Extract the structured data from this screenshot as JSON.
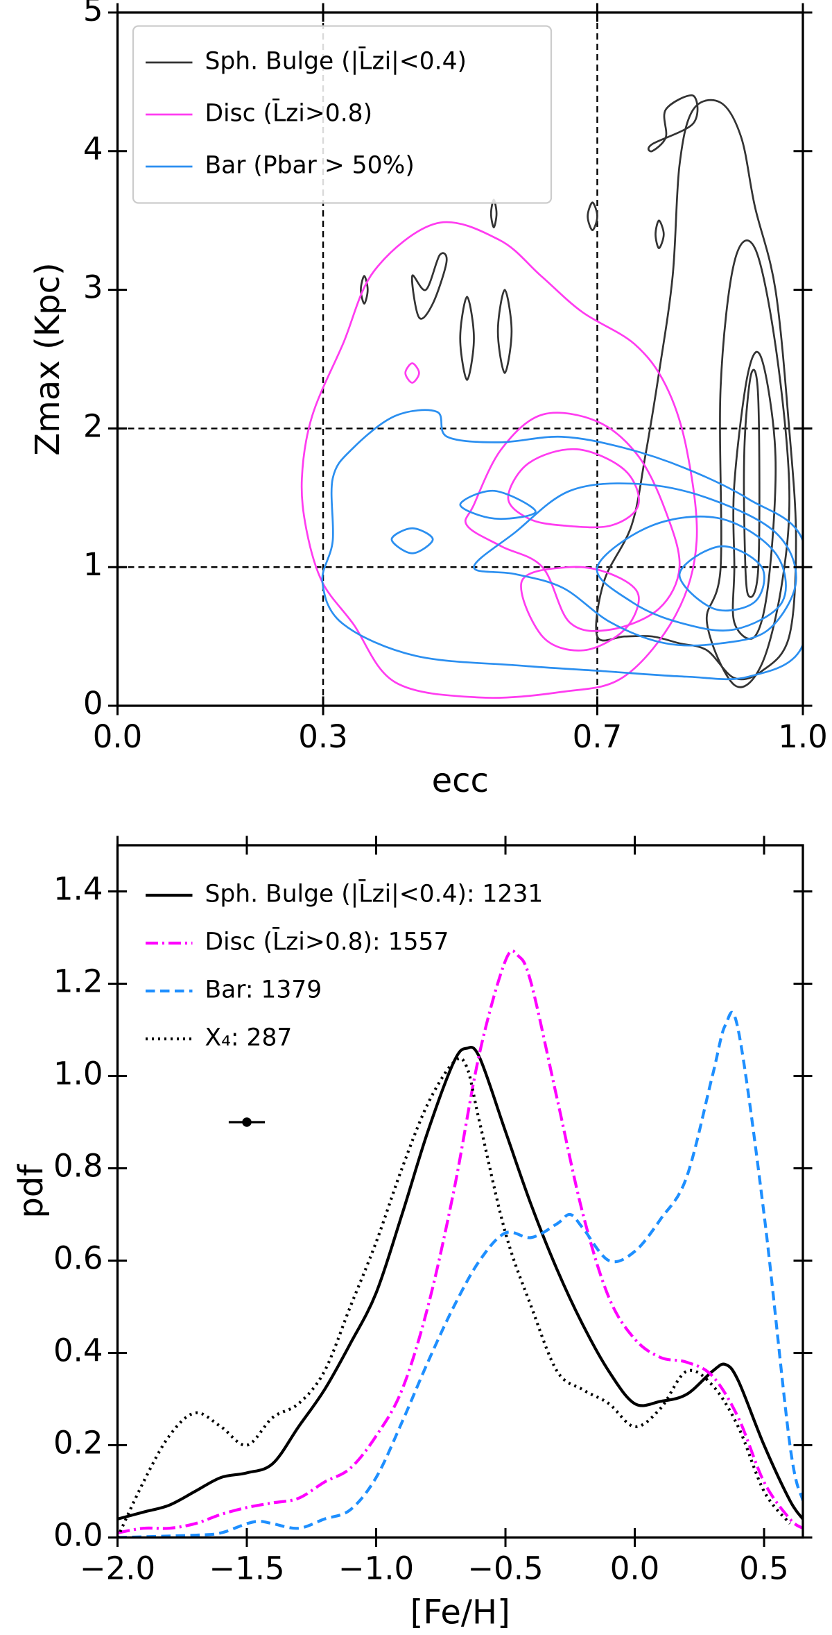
{
  "chart_data": [
    {
      "type": "contour",
      "x_label": "ecc",
      "y_label": "Zmax (Kpc)",
      "xlim": [
        0,
        1
      ],
      "ylim": [
        0,
        5
      ],
      "xticks": [
        {
          "value": 0,
          "label": "0.0"
        },
        0.3,
        0.7,
        {
          "value": 1,
          "label": "1.0"
        }
      ],
      "yticks": [
        0,
        1,
        2,
        3,
        4,
        5
      ],
      "vlines": [
        0.3,
        0.7
      ],
      "hlines": [
        1,
        2
      ],
      "legend": "upper left",
      "legend_frame": true,
      "series": [
        {
          "name": "Sph. Bulge (|L̄zi|<0.4)",
          "color": "#333333",
          "contours": [
            {
              "x": [
                0.7,
                0.71,
                0.75,
                0.77,
                0.79,
                0.81,
                0.82,
                0.84,
                0.88,
                0.91,
                0.93,
                0.96,
                0.98,
                0.99,
                0.98,
                0.94,
                0.9,
                0.86,
                0.82,
                0.78,
                0.74
              ],
              "y": [
                0.5,
                0.9,
                1.3,
                1.8,
                2.4,
                3.1,
                3.9,
                4.3,
                4.35,
                4.1,
                3.6,
                3.0,
                2.0,
                1.2,
                0.5,
                0.25,
                0.2,
                0.4,
                0.45,
                0.5,
                0.5
              ]
            },
            {
              "x": [
                0.88,
                0.86,
                0.9,
                0.94,
                0.97,
                0.98,
                0.96,
                0.93,
                0.9,
                0.88
              ],
              "y": [
                1.0,
                0.6,
                0.15,
                0.3,
                0.9,
                1.6,
                2.6,
                3.3,
                3.2,
                2.3
              ]
            },
            {
              "x": [
                0.9,
                0.9,
                0.93,
                0.95,
                0.96,
                0.94,
                0.92,
                0.9
              ],
              "y": [
                1.0,
                0.6,
                0.5,
                0.9,
                1.8,
                2.5,
                2.4,
                1.6
              ]
            },
            {
              "x": [
                0.915,
                0.92,
                0.935,
                0.935,
                0.925,
                0.915
              ],
              "y": [
                1.2,
                0.8,
                1.0,
                2.2,
                2.4,
                1.9
              ]
            },
            {
              "x": [
                0.44,
                0.46,
                0.48,
                0.47,
                0.45,
                0.43
              ],
              "y": [
                2.8,
                2.9,
                3.2,
                3.25,
                3.0,
                3.1
              ]
            },
            {
              "x": [
                0.5,
                0.51,
                0.52,
                0.51
              ],
              "y": [
                2.65,
                2.35,
                2.65,
                2.95
              ]
            },
            {
              "x": [
                0.555,
                0.565,
                0.575,
                0.565
              ],
              "y": [
                2.7,
                2.4,
                2.7,
                3.0
              ]
            },
            {
              "x": [
                0.355,
                0.36,
                0.365,
                0.36
              ],
              "y": [
                3.0,
                2.9,
                3.0,
                3.1
              ]
            },
            {
              "x": [
                0.545,
                0.549,
                0.553,
                0.549
              ],
              "y": [
                3.55,
                3.45,
                3.55,
                3.65
              ]
            },
            {
              "x": [
                0.686,
                0.693,
                0.7,
                0.693
              ],
              "y": [
                3.53,
                3.43,
                3.53,
                3.63
              ]
            },
            {
              "x": [
                0.785,
                0.79,
                0.797,
                0.79
              ],
              "y": [
                3.4,
                3.3,
                3.4,
                3.5
              ]
            },
            {
              "x": [
                0.78,
                0.8,
                0.8,
                0.84,
                0.84,
                0.78
              ],
              "y": [
                4.0,
                4.1,
                4.3,
                4.4,
                4.2,
                4.05
              ]
            }
          ]
        },
        {
          "name": "Disc (L̄zi>0.8)",
          "color": "#ff3cf0",
          "contours": [
            {
              "x": [
                0.269,
                0.284,
                0.329,
                0.375,
                0.466,
                0.557,
                0.618,
                0.678,
                0.754,
                0.8,
                0.83,
                0.845,
                0.815,
                0.739,
                0.648,
                0.527,
                0.405,
                0.344,
                0.299,
                0.276
              ],
              "y": [
                1.64,
                2.09,
                2.61,
                3.14,
                3.48,
                3.36,
                3.1,
                2.84,
                2.61,
                2.31,
                1.86,
                1.19,
                0.66,
                0.21,
                0.1,
                0.06,
                0.17,
                0.59,
                0.89,
                1.26
              ]
            },
            {
              "x": [
                0.52,
                0.56,
                0.62,
                0.7,
                0.76,
                0.8,
                0.82,
                0.79,
                0.72,
                0.66,
                0.62,
                0.56,
                0.51
              ],
              "y": [
                1.45,
                1.85,
                2.1,
                2.05,
                1.8,
                1.4,
                1.0,
                0.7,
                0.55,
                0.6,
                1.0,
                1.15,
                1.3
              ]
            },
            {
              "x": [
                0.57,
                0.6,
                0.67,
                0.74,
                0.76,
                0.72,
                0.65,
                0.6
              ],
              "y": [
                1.5,
                1.75,
                1.85,
                1.7,
                1.45,
                1.3,
                1.3,
                1.35
              ]
            },
            {
              "x": [
                0.59,
                0.62,
                0.68,
                0.74,
                0.76,
                0.72,
                0.66
              ],
              "y": [
                0.9,
                0.5,
                0.4,
                0.55,
                0.8,
                0.95,
                1.0
              ]
            },
            {
              "x": [
                0.42,
                0.43,
                0.44,
                0.43
              ],
              "y": [
                2.4,
                2.33,
                2.4,
                2.47
              ]
            }
          ]
        },
        {
          "name": "Bar (Pbar > 50%)",
          "color": "#2b8ff0",
          "contours": [
            {
              "x": [
                0.314,
                0.344,
                0.405,
                0.466,
                0.481,
                0.557,
                0.648,
                0.739,
                0.83,
                0.921,
                1.0,
                1.0,
                0.921,
                0.83,
                0.708,
                0.587,
                0.435,
                0.329,
                0.299,
                0.314
              ],
              "y": [
                1.64,
                1.86,
                2.09,
                2.12,
                1.94,
                1.9,
                1.94,
                1.86,
                1.71,
                1.49,
                1.19,
                0.44,
                0.21,
                0.21,
                0.25,
                0.29,
                0.36,
                0.59,
                0.89,
                1.19
              ]
            },
            {
              "x": [
                0.52,
                0.58,
                0.66,
                0.76,
                0.86,
                0.96,
                0.99,
                0.95,
                0.88,
                0.8,
                0.72,
                0.65,
                0.58
              ],
              "y": [
                1.0,
                1.25,
                1.55,
                1.6,
                1.5,
                1.25,
                0.9,
                0.55,
                0.45,
                0.45,
                0.6,
                0.85,
                0.95
              ]
            },
            {
              "x": [
                0.7,
                0.78,
                0.88,
                0.96,
                0.97,
                0.9,
                0.82,
                0.75
              ],
              "y": [
                1.0,
                1.3,
                1.35,
                1.1,
                0.75,
                0.55,
                0.6,
                0.75
              ]
            },
            {
              "x": [
                0.82,
                0.88,
                0.94,
                0.93,
                0.87
              ],
              "y": [
                0.95,
                1.15,
                1.0,
                0.75,
                0.7
              ]
            },
            {
              "x": [
                0.5,
                0.55,
                0.61,
                0.55
              ],
              "y": [
                1.45,
                1.35,
                1.4,
                1.55
              ]
            },
            {
              "x": [
                0.4,
                0.43,
                0.46,
                0.43
              ],
              "y": [
                1.2,
                1.1,
                1.2,
                1.28
              ]
            }
          ]
        }
      ]
    },
    {
      "type": "line",
      "x_label": "[Fe/H]",
      "y_label": "pdf",
      "xlim": [
        -2.0,
        0.65
      ],
      "ylim": [
        0,
        1.5
      ],
      "xticks": [
        {
          "value": -2.0,
          "label": "−2.0"
        },
        {
          "value": -1.5,
          "label": "−1.5"
        },
        {
          "value": -1.0,
          "label": "−1.0"
        },
        {
          "value": -0.5,
          "label": "−0.5"
        },
        {
          "value": 0.0,
          "label": "0.0"
        },
        {
          "value": 0.5,
          "label": "0.5"
        }
      ],
      "yticks": [
        {
          "value": 0,
          "label": "0.0"
        },
        0.2,
        0.4,
        0.6,
        0.8,
        {
          "value": 1.0,
          "label": "1.0"
        },
        1.2,
        1.4
      ],
      "legend": "upper left",
      "legend_frame": false,
      "errorbar": {
        "x": -1.5,
        "y": 0.9,
        "xerr": 0.07
      },
      "series": [
        {
          "name": "Sph. Bulge (|L̄zi|<0.4): 1231",
          "color": "#000000",
          "style": "solid",
          "x": [
            -2.0,
            -1.9,
            -1.8,
            -1.7,
            -1.6,
            -1.5,
            -1.4,
            -1.3,
            -1.2,
            -1.1,
            -1.0,
            -0.9,
            -0.8,
            -0.7,
            -0.65,
            -0.6,
            -0.5,
            -0.4,
            -0.3,
            -0.2,
            -0.1,
            0.0,
            0.1,
            0.2,
            0.3,
            0.35,
            0.4,
            0.5,
            0.6,
            0.65
          ],
          "values": [
            0.04,
            0.055,
            0.07,
            0.1,
            0.13,
            0.14,
            0.16,
            0.24,
            0.32,
            0.42,
            0.53,
            0.7,
            0.88,
            1.03,
            1.06,
            1.04,
            0.88,
            0.72,
            0.58,
            0.46,
            0.36,
            0.29,
            0.295,
            0.31,
            0.36,
            0.375,
            0.34,
            0.2,
            0.08,
            0.04
          ]
        },
        {
          "name": "Disc (L̄zi>0.8): 1557",
          "color": "#ff00ff",
          "style": "dashdot",
          "x": [
            -2.0,
            -1.9,
            -1.8,
            -1.7,
            -1.6,
            -1.5,
            -1.4,
            -1.3,
            -1.2,
            -1.1,
            -1.0,
            -0.9,
            -0.8,
            -0.7,
            -0.6,
            -0.5,
            -0.45,
            -0.4,
            -0.3,
            -0.2,
            -0.1,
            0.0,
            0.1,
            0.2,
            0.3,
            0.4,
            0.5,
            0.6,
            0.65
          ],
          "values": [
            0.01,
            0.02,
            0.02,
            0.03,
            0.05,
            0.065,
            0.075,
            0.085,
            0.12,
            0.15,
            0.22,
            0.32,
            0.5,
            0.75,
            1.05,
            1.25,
            1.26,
            1.2,
            0.95,
            0.7,
            0.52,
            0.43,
            0.39,
            0.38,
            0.35,
            0.26,
            0.12,
            0.04,
            0.02
          ]
        },
        {
          "name": "Bar: 1379",
          "color": "#1e8fff",
          "style": "dashed",
          "x": [
            -2.0,
            -1.7,
            -1.6,
            -1.5,
            -1.45,
            -1.4,
            -1.3,
            -1.2,
            -1.1,
            -1.0,
            -0.9,
            -0.8,
            -0.7,
            -0.6,
            -0.5,
            -0.4,
            -0.3,
            -0.25,
            -0.2,
            -0.1,
            0.0,
            0.1,
            0.2,
            0.3,
            0.35,
            0.4,
            0.5,
            0.6,
            0.65
          ],
          "values": [
            0.0,
            0.005,
            0.01,
            0.03,
            0.035,
            0.03,
            0.02,
            0.04,
            0.06,
            0.13,
            0.25,
            0.38,
            0.5,
            0.6,
            0.66,
            0.65,
            0.68,
            0.7,
            0.67,
            0.6,
            0.62,
            0.69,
            0.78,
            1.0,
            1.11,
            1.1,
            0.7,
            0.2,
            0.08
          ]
        },
        {
          "name": "X₄: 287",
          "color": "#000000",
          "style": "dotted",
          "x": [
            -2.0,
            -1.9,
            -1.8,
            -1.7,
            -1.6,
            -1.5,
            -1.4,
            -1.3,
            -1.2,
            -1.1,
            -1.0,
            -0.9,
            -0.8,
            -0.7,
            -0.65,
            -0.6,
            -0.5,
            -0.4,
            -0.3,
            -0.2,
            -0.1,
            0.0,
            0.1,
            0.2,
            0.3,
            0.4,
            0.5,
            0.6
          ],
          "values": [
            0.0,
            0.12,
            0.22,
            0.27,
            0.24,
            0.2,
            0.26,
            0.29,
            0.36,
            0.5,
            0.64,
            0.8,
            0.94,
            1.03,
            1.02,
            0.9,
            0.66,
            0.5,
            0.36,
            0.32,
            0.29,
            0.24,
            0.28,
            0.36,
            0.33,
            0.24,
            0.1,
            0.03
          ]
        }
      ]
    }
  ]
}
